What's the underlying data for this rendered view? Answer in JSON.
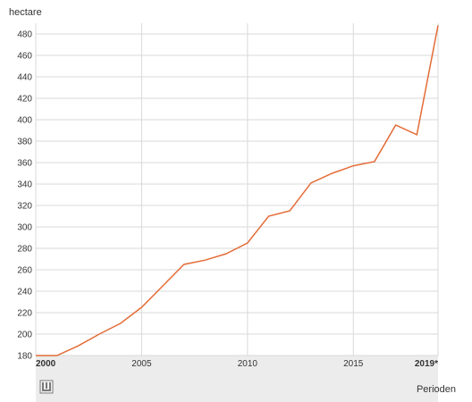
{
  "chart_data": {
    "type": "line",
    "title": "",
    "xlabel": "Perioden",
    "ylabel": "hectare",
    "xlim": [
      2000,
      2019
    ],
    "ylim": [
      180,
      490
    ],
    "x_tick_labels": [
      "2000",
      "2005",
      "2010",
      "2015",
      "2019*"
    ],
    "y_tick_labels": [
      "180",
      "200",
      "220",
      "240",
      "260",
      "280",
      "300",
      "320",
      "340",
      "360",
      "380",
      "400",
      "420",
      "440",
      "460",
      "480"
    ],
    "grid": true,
    "series": [
      {
        "x": [
          2000,
          2001,
          2002,
          2003,
          2004,
          2005,
          2006,
          2007,
          2008,
          2009,
          2010,
          2011,
          2012,
          2013,
          2014,
          2015,
          2016,
          2017,
          2018,
          2019
        ],
        "y": [
          180,
          180,
          189,
          200,
          210,
          225,
          245,
          265,
          269,
          275,
          285,
          310,
          315,
          341,
          350,
          357,
          361,
          395,
          386,
          488
        ],
        "color": "#e46c37"
      }
    ],
    "colors": {
      "line": "#e46c37",
      "grid": "#d9d9d9",
      "band": "#ececec",
      "text": "#333333"
    }
  }
}
